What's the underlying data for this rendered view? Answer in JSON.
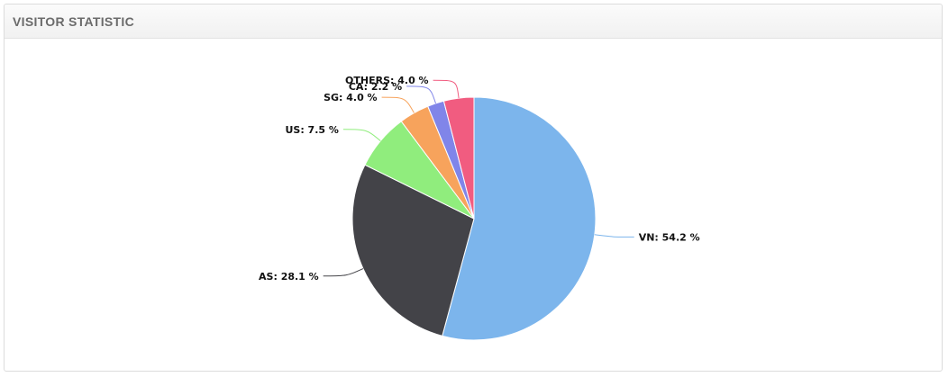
{
  "panel": {
    "title": "VISITOR STATISTIC"
  },
  "chart_data": {
    "type": "pie",
    "title": "",
    "unit": "%",
    "slices": [
      {
        "label": "VN: 54.2 %",
        "name": "VN",
        "value": 54.2,
        "color": "#7cb5ec"
      },
      {
        "label": "AS: 28.1 %",
        "name": "AS",
        "value": 28.1,
        "color": "#434348"
      },
      {
        "label": "US: 7.5 %",
        "name": "US",
        "value": 7.5,
        "color": "#90ed7d"
      },
      {
        "label": "SG: 4.0 %",
        "name": "SG",
        "value": 4.0,
        "color": "#f7a35c"
      },
      {
        "label": "CA: 2.2 %",
        "name": "CA",
        "value": 2.2,
        "color": "#8085e9"
      },
      {
        "label": "OTHERS: 4.0 %",
        "name": "OTHERS",
        "value": 4.0,
        "color": "#f15c80"
      }
    ]
  }
}
